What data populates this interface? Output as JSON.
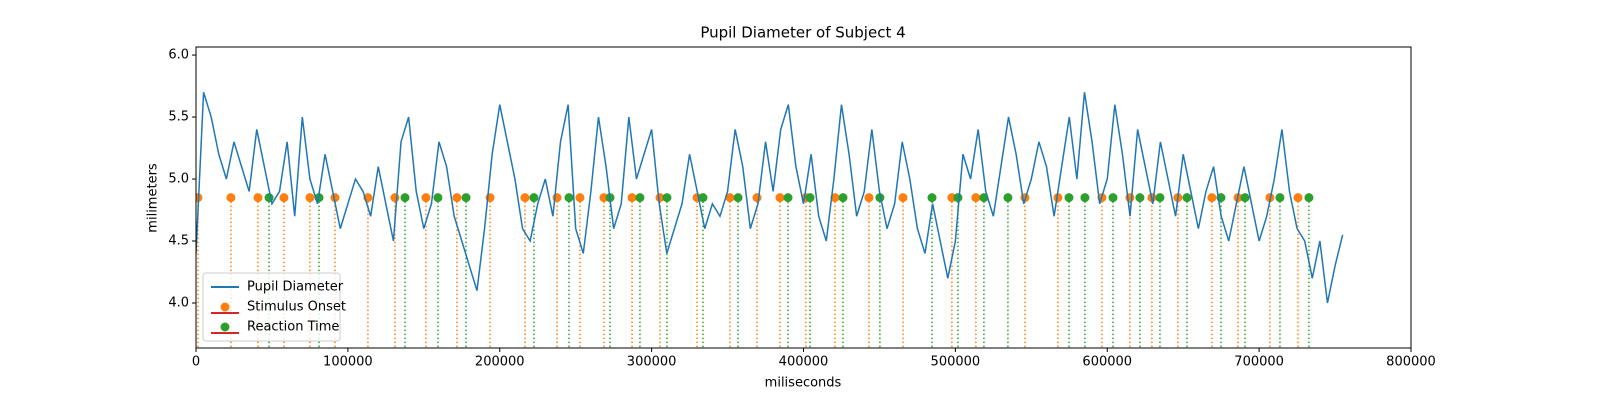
{
  "chart_data": {
    "type": "line",
    "title": "Pupil Diameter of Subject 4",
    "x_label": "miliseconds",
    "y_label": "milimeters",
    "xlim": [
      0,
      800000
    ],
    "xticks": [
      0,
      100000,
      200000,
      300000,
      400000,
      500000,
      600000,
      700000,
      800000
    ],
    "ylim": [
      3.637,
      6.065
    ],
    "yticks": [
      {
        "value": 4,
        "label": "4.0"
      },
      4.5,
      {
        "value": 5,
        "label": "5.0"
      },
      5.5,
      {
        "value": 6,
        "label": "6.0"
      }
    ],
    "legend": "lower left",
    "series": [
      {
        "name": "Pupil Diameter",
        "type": "line",
        "color": "#1f77b4",
        "x": [
          0,
          5000,
          10000,
          15000,
          20000,
          25000,
          30000,
          35000,
          40000,
          45000,
          50000,
          55000,
          60000,
          65000,
          70000,
          75000,
          80000,
          85000,
          90000,
          95000,
          100000,
          105000,
          110000,
          115000,
          120000,
          125000,
          130000,
          135000,
          140000,
          145000,
          150000,
          155000,
          160000,
          165000,
          170000,
          175000,
          180000,
          185000,
          190000,
          195000,
          200000,
          205000,
          210000,
          215000,
          220000,
          225000,
          230000,
          235000,
          240000,
          245000,
          250000,
          255000,
          260000,
          265000,
          270000,
          275000,
          280000,
          285000,
          290000,
          295000,
          300000,
          305000,
          310000,
          315000,
          320000,
          325000,
          330000,
          335000,
          340000,
          345000,
          350000,
          355000,
          360000,
          365000,
          370000,
          375000,
          380000,
          385000,
          390000,
          395000,
          400000,
          405000,
          410000,
          415000,
          420000,
          425000,
          430000,
          435000,
          440000,
          445000,
          450000,
          455000,
          460000,
          465000,
          470000,
          475000,
          480000,
          485000,
          490000,
          495000,
          500000,
          505000,
          510000,
          515000,
          520000,
          525000,
          530000,
          535000,
          540000,
          545000,
          550000,
          555000,
          560000,
          565000,
          570000,
          575000,
          580000,
          585000,
          590000,
          595000,
          600000,
          605000,
          610000,
          615000,
          620000,
          625000,
          630000,
          635000,
          640000,
          645000,
          650000,
          655000,
          660000,
          665000,
          670000,
          675000,
          680000,
          685000,
          690000,
          695000,
          700000,
          705000,
          710000,
          715000,
          720000,
          725000,
          730000,
          735000,
          740000,
          745000,
          750000,
          755000
        ],
        "values": [
          4.4,
          5.7,
          5.5,
          5.2,
          5.0,
          5.3,
          5.1,
          4.9,
          5.4,
          5.1,
          4.8,
          4.9,
          5.3,
          4.7,
          5.5,
          5.0,
          4.8,
          5.2,
          4.9,
          4.6,
          4.8,
          5.0,
          4.9,
          4.7,
          5.1,
          4.8,
          4.5,
          5.3,
          5.5,
          4.9,
          4.6,
          4.8,
          5.3,
          5.1,
          4.7,
          4.5,
          4.3,
          4.1,
          4.6,
          5.2,
          5.6,
          5.3,
          5.0,
          4.6,
          4.5,
          4.8,
          5.0,
          4.7,
          5.3,
          5.6,
          4.6,
          4.4,
          4.9,
          5.5,
          5.1,
          4.6,
          4.8,
          5.5,
          5.0,
          5.2,
          5.4,
          4.8,
          4.4,
          4.6,
          4.8,
          5.2,
          4.9,
          4.6,
          4.8,
          4.7,
          4.9,
          5.4,
          5.1,
          4.6,
          4.8,
          5.3,
          4.9,
          5.4,
          5.6,
          5.1,
          4.8,
          5.2,
          4.7,
          4.5,
          5.0,
          5.6,
          5.2,
          4.7,
          4.9,
          5.4,
          4.9,
          4.6,
          4.8,
          5.3,
          5.0,
          4.6,
          4.4,
          4.8,
          4.5,
          4.2,
          4.5,
          5.2,
          5.0,
          5.4,
          4.9,
          4.7,
          5.1,
          5.5,
          5.2,
          4.8,
          5.0,
          5.3,
          5.1,
          4.7,
          5.1,
          5.5,
          5.0,
          5.7,
          5.3,
          4.8,
          5.0,
          5.6,
          5.2,
          4.7,
          5.4,
          5.1,
          4.8,
          5.3,
          5.0,
          4.7,
          5.2,
          4.9,
          4.6,
          4.9,
          5.1,
          4.7,
          4.5,
          4.8,
          5.1,
          4.8,
          4.5,
          4.7,
          5.0,
          5.4,
          4.9,
          4.6,
          4.5,
          4.2,
          4.5,
          4.0,
          4.3,
          4.55
        ]
      },
      {
        "name": "Stimulus Onset",
        "type": "stem",
        "color": "#ff7f0e",
        "x": [
          1300,
          23000,
          40800,
          57900,
          75000,
          91500,
          113200,
          131000,
          151400,
          171800,
          193600,
          216600,
          237700,
          252800,
          268600,
          287100,
          305500,
          329900,
          351600,
          369400,
          384500,
          401600,
          420700,
          443100,
          465500,
          497700,
          513500,
          545800,
          567500,
          596500,
          614900,
          629400,
          646500,
          668900,
          686100,
          707100,
          725600
        ],
        "values": [
          4.85,
          4.85,
          4.85,
          4.85,
          4.85,
          4.85,
          4.85,
          4.85,
          4.85,
          4.85,
          4.85,
          4.85,
          4.85,
          4.85,
          4.85,
          4.85,
          4.85,
          4.85,
          4.85,
          4.85,
          4.85,
          4.85,
          4.85,
          4.85,
          4.85,
          4.85,
          4.85,
          4.85,
          4.85,
          4.85,
          4.85,
          4.85,
          4.85,
          4.85,
          4.85,
          4.85,
          4.85
        ]
      },
      {
        "name": "Reaction Time",
        "type": "stem",
        "color": "#2ca02c",
        "x": [
          48100,
          81000,
          137600,
          159300,
          177800,
          222500,
          245600,
          272600,
          292300,
          310100,
          333800,
          356900,
          389800,
          404300,
          426000,
          450300,
          484600,
          501700,
          518800,
          534600,
          574800,
          585300,
          603800,
          621500,
          634700,
          652500,
          674900,
          690700,
          713700,
          732800
        ],
        "values": [
          4.85,
          4.85,
          4.85,
          4.85,
          4.85,
          4.85,
          4.85,
          4.85,
          4.85,
          4.85,
          4.85,
          4.85,
          4.85,
          4.85,
          4.85,
          4.85,
          4.85,
          4.85,
          4.85,
          4.85,
          4.85,
          4.85,
          4.85,
          4.85,
          4.85,
          4.85,
          4.85,
          4.85,
          4.85,
          4.85
        ]
      }
    ]
  }
}
